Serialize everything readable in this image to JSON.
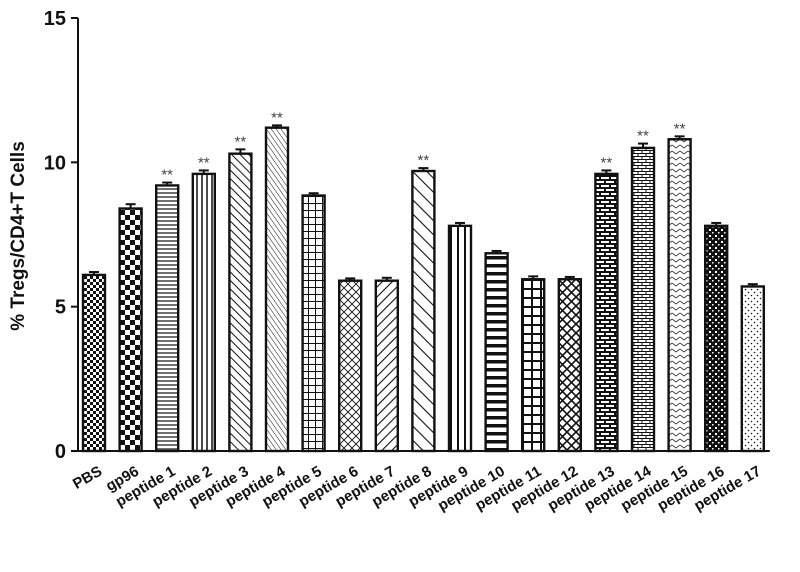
{
  "chart_data": {
    "type": "bar",
    "title": "",
    "xlabel": "",
    "ylabel": "% Tregs/CD4+T Cells",
    "ylim": [
      0,
      15
    ],
    "yticks": [
      "0",
      "5",
      "10",
      "15"
    ],
    "grid": false,
    "legend": "none",
    "categories": [
      "PBS",
      "gp96",
      "peptide 1",
      "peptide 2",
      "peptide 3",
      "peptide 4",
      "peptide 5",
      "peptide 6",
      "peptide 7",
      "peptide 8",
      "peptide 9",
      "peptide 10",
      "peptide 11",
      "peptide 12",
      "peptide 13",
      "peptide 14",
      "peptide 15",
      "peptide 16",
      "peptide 17"
    ],
    "values": [
      6.1,
      8.4,
      9.2,
      9.6,
      10.3,
      11.2,
      8.85,
      5.9,
      5.9,
      9.7,
      7.8,
      6.85,
      5.95,
      5.95,
      9.6,
      10.5,
      10.8,
      7.8,
      5.7
    ],
    "errors": [
      0.1,
      0.15,
      0.1,
      0.12,
      0.15,
      0.08,
      0.08,
      0.08,
      0.1,
      0.1,
      0.1,
      0.08,
      0.1,
      0.08,
      0.12,
      0.15,
      0.1,
      0.1,
      0.08
    ],
    "significance": [
      "",
      "",
      "**",
      "**",
      "**",
      "**",
      "",
      "",
      "",
      "**",
      "",
      "",
      "",
      "",
      "**",
      "**",
      "**",
      "",
      ""
    ],
    "patterns": [
      "checker-small",
      "checker-large",
      "hlines",
      "vlines",
      "diag-right-dense",
      "diag-right-fine",
      "grid",
      "diamond",
      "diag-left",
      "diag-right-wide",
      "vlines-wide",
      "hlines-thick",
      "grid-large",
      "crosshatch",
      "brick",
      "hbrick",
      "chevron",
      "checker-dark",
      "dots"
    ]
  }
}
